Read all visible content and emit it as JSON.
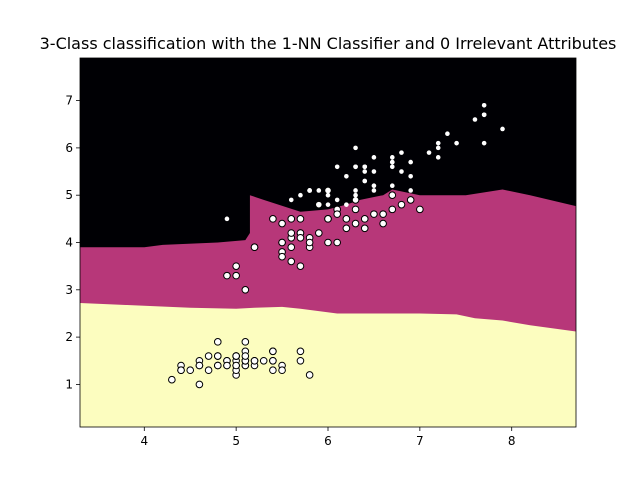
{
  "chart_data": {
    "type": "scatter",
    "title": "3-Class classification with the 1-NN Classifier and 0 Irrelevant Attributes",
    "xlabel": "",
    "ylabel": "",
    "xlim": [
      3.3,
      8.7
    ],
    "ylim": [
      0.1,
      7.9
    ],
    "xticks": [
      "4",
      "5",
      "6",
      "7",
      "8"
    ],
    "yticks": [
      "1",
      "2",
      "3",
      "4",
      "5",
      "6",
      "7"
    ],
    "grid": false,
    "legend": "none",
    "region_colors": {
      "class0": "#fcfdbf",
      "class1": "#b73779",
      "class2": "#000004"
    },
    "point_colors": {
      "class0": "#fcfdbf",
      "class1": "#b73779",
      "class2": "#000004",
      "edge": "#000000",
      "plain_fill": "#ffffff"
    },
    "boundaries": {
      "lower": [
        [
          3.3,
          2.72
        ],
        [
          3.8,
          2.68
        ],
        [
          4.5,
          2.62
        ],
        [
          5.0,
          2.6
        ],
        [
          5.2,
          2.62
        ],
        [
          5.5,
          2.64
        ],
        [
          5.7,
          2.6
        ],
        [
          5.9,
          2.55
        ],
        [
          6.1,
          2.5
        ],
        [
          6.5,
          2.5
        ],
        [
          7.0,
          2.5
        ],
        [
          7.4,
          2.48
        ],
        [
          7.6,
          2.4
        ],
        [
          7.9,
          2.35
        ],
        [
          8.2,
          2.25
        ],
        [
          8.7,
          2.12
        ]
      ],
      "upper": [
        [
          3.3,
          3.9
        ],
        [
          4.0,
          3.9
        ],
        [
          4.2,
          3.95
        ],
        [
          4.8,
          4.0
        ],
        [
          5.1,
          4.05
        ],
        [
          5.15,
          4.2
        ],
        [
          5.15,
          5.0
        ],
        [
          5.3,
          4.9
        ],
        [
          5.7,
          4.65
        ],
        [
          6.0,
          4.7
        ],
        [
          6.2,
          4.8
        ],
        [
          6.35,
          4.9
        ],
        [
          6.6,
          5.0
        ],
        [
          6.7,
          5.12
        ],
        [
          7.0,
          5.0
        ],
        [
          7.5,
          5.0
        ],
        [
          7.9,
          5.12
        ],
        [
          8.2,
          5.0
        ],
        [
          8.7,
          4.77
        ]
      ]
    },
    "series": [
      {
        "marker": "circle-large",
        "points": [
          [
            5.1,
            1.4
          ],
          [
            4.9,
            1.4
          ],
          [
            4.7,
            1.3
          ],
          [
            4.6,
            1.5
          ],
          [
            5.0,
            1.4
          ],
          [
            5.4,
            1.7
          ],
          [
            4.6,
            1.4
          ],
          [
            5.0,
            1.5
          ],
          [
            4.4,
            1.4
          ],
          [
            4.9,
            1.5
          ],
          [
            5.4,
            1.5
          ],
          [
            4.8,
            1.6
          ],
          [
            4.8,
            1.4
          ],
          [
            4.3,
            1.1
          ],
          [
            5.8,
            1.2
          ],
          [
            5.7,
            1.5
          ],
          [
            5.4,
            1.3
          ],
          [
            5.1,
            1.4
          ],
          [
            5.7,
            1.7
          ],
          [
            5.1,
            1.5
          ],
          [
            5.4,
            1.7
          ],
          [
            5.1,
            1.5
          ],
          [
            4.6,
            1.0
          ],
          [
            5.1,
            1.7
          ],
          [
            4.8,
            1.9
          ],
          [
            5.0,
            1.6
          ],
          [
            5.0,
            1.6
          ],
          [
            5.2,
            1.5
          ],
          [
            5.2,
            1.4
          ],
          [
            4.7,
            1.6
          ],
          [
            4.8,
            1.6
          ],
          [
            5.4,
            1.5
          ],
          [
            5.2,
            1.5
          ],
          [
            5.5,
            1.4
          ],
          [
            4.9,
            1.5
          ],
          [
            5.0,
            1.2
          ],
          [
            5.5,
            1.3
          ],
          [
            4.9,
            1.4
          ],
          [
            4.4,
            1.3
          ],
          [
            5.1,
            1.5
          ],
          [
            5.0,
            1.3
          ],
          [
            4.5,
            1.3
          ],
          [
            4.4,
            1.3
          ],
          [
            5.0,
            1.6
          ],
          [
            5.1,
            1.9
          ],
          [
            4.8,
            1.4
          ],
          [
            5.1,
            1.6
          ],
          [
            4.6,
            1.4
          ],
          [
            5.3,
            1.5
          ],
          [
            5.0,
            1.4
          ]
        ]
      },
      {
        "marker": "circle-large",
        "points": [
          [
            5.5,
            4.0
          ],
          [
            5.7,
            4.5
          ],
          [
            4.9,
            3.3
          ],
          [
            5.2,
            3.9
          ],
          [
            5.0,
            3.5
          ],
          [
            5.9,
            4.2
          ],
          [
            6.0,
            4.0
          ],
          [
            6.1,
            4.7
          ],
          [
            5.6,
            3.6
          ],
          [
            5.6,
            4.5
          ],
          [
            5.8,
            4.1
          ],
          [
            6.2,
            4.5
          ],
          [
            5.6,
            3.9
          ],
          [
            5.9,
            4.8
          ],
          [
            6.1,
            4.0
          ],
          [
            6.3,
            4.9
          ],
          [
            6.1,
            4.7
          ],
          [
            6.4,
            4.3
          ],
          [
            6.6,
            4.4
          ],
          [
            6.8,
            4.8
          ],
          [
            6.7,
            5.0
          ],
          [
            6.0,
            4.5
          ],
          [
            5.7,
            3.5
          ],
          [
            5.5,
            3.8
          ],
          [
            5.5,
            3.7
          ],
          [
            5.8,
            3.9
          ],
          [
            6.0,
            5.1
          ],
          [
            5.4,
            4.5
          ],
          [
            6.0,
            4.5
          ],
          [
            6.7,
            4.7
          ],
          [
            6.3,
            4.4
          ],
          [
            5.6,
            4.1
          ],
          [
            5.5,
            4.0
          ],
          [
            5.5,
            4.4
          ],
          [
            6.1,
            4.6
          ],
          [
            5.8,
            4.0
          ],
          [
            5.0,
            3.3
          ],
          [
            5.6,
            4.2
          ],
          [
            5.7,
            4.2
          ],
          [
            5.7,
            4.2
          ],
          [
            6.2,
            4.3
          ],
          [
            5.1,
            3.0
          ],
          [
            5.7,
            4.1
          ],
          [
            7.0,
            4.7
          ],
          [
            6.4,
            4.5
          ],
          [
            6.9,
            4.9
          ],
          [
            6.5,
            4.6
          ],
          [
            6.3,
            4.7
          ],
          [
            6.6,
            4.6
          ],
          [
            5.2,
            3.9
          ]
        ]
      },
      {
        "marker": "circle-small",
        "points": [
          [
            6.3,
            6.0
          ],
          [
            5.8,
            5.1
          ],
          [
            7.1,
            5.9
          ],
          [
            6.3,
            5.6
          ],
          [
            6.5,
            5.8
          ],
          [
            7.6,
            6.6
          ],
          [
            4.9,
            4.5
          ],
          [
            7.3,
            6.3
          ],
          [
            6.7,
            5.8
          ],
          [
            7.2,
            6.1
          ],
          [
            6.5,
            5.1
          ],
          [
            6.4,
            5.3
          ],
          [
            6.8,
            5.5
          ],
          [
            5.7,
            5.0
          ],
          [
            5.8,
            5.1
          ],
          [
            6.4,
            5.3
          ],
          [
            6.5,
            5.5
          ],
          [
            7.7,
            6.7
          ],
          [
            7.7,
            6.9
          ],
          [
            6.0,
            5.0
          ],
          [
            6.9,
            5.7
          ],
          [
            5.6,
            4.9
          ],
          [
            7.7,
            6.7
          ],
          [
            6.3,
            4.9
          ],
          [
            6.7,
            5.7
          ],
          [
            7.2,
            6.0
          ],
          [
            6.2,
            4.8
          ],
          [
            6.1,
            4.9
          ],
          [
            6.4,
            5.6
          ],
          [
            7.2,
            5.8
          ],
          [
            7.4,
            6.1
          ],
          [
            7.9,
            6.4
          ],
          [
            6.4,
            5.6
          ],
          [
            6.3,
            5.1
          ],
          [
            6.1,
            5.6
          ],
          [
            7.7,
            6.1
          ],
          [
            6.3,
            5.6
          ],
          [
            6.4,
            5.5
          ],
          [
            6.0,
            4.8
          ],
          [
            6.9,
            5.4
          ],
          [
            6.7,
            5.6
          ],
          [
            6.9,
            5.1
          ],
          [
            5.8,
            5.1
          ],
          [
            6.8,
            5.9
          ],
          [
            6.7,
            5.7
          ],
          [
            6.7,
            5.2
          ],
          [
            6.3,
            5.0
          ],
          [
            6.5,
            5.2
          ],
          [
            6.2,
            5.4
          ],
          [
            5.9,
            5.1
          ]
        ]
      }
    ]
  }
}
